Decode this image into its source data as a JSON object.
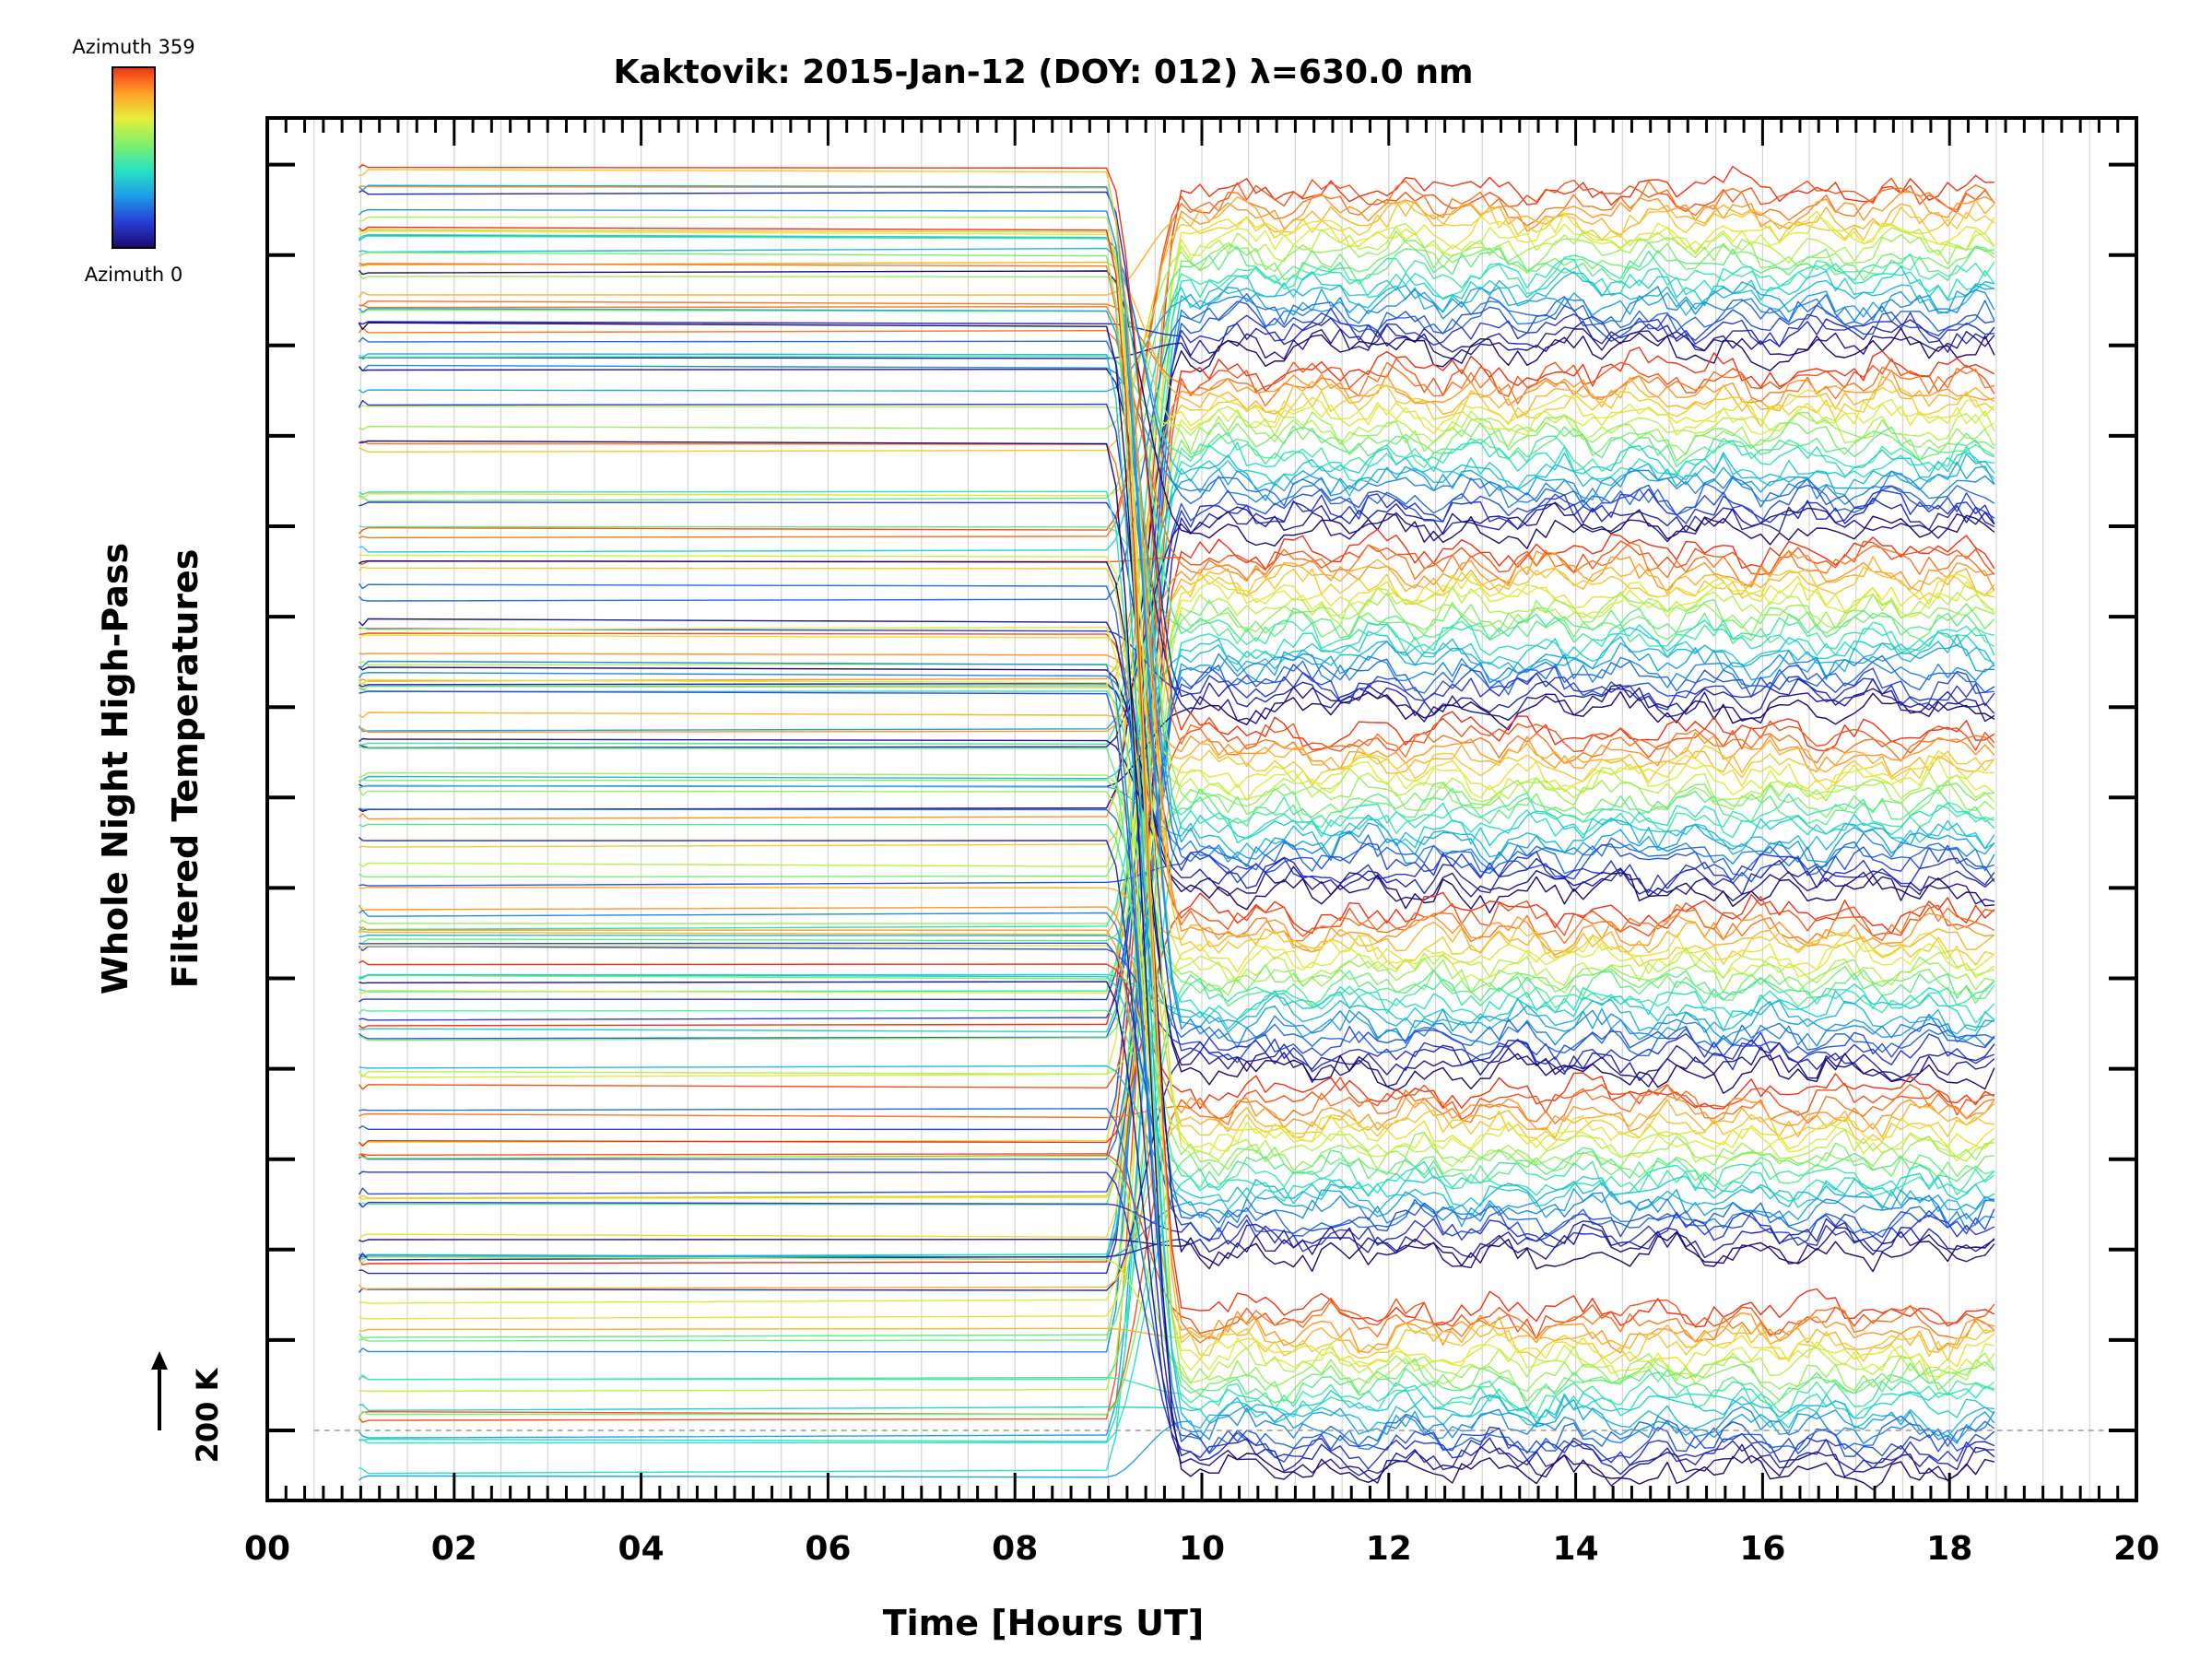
{
  "chart_data": {
    "type": "line",
    "title": "Kaktovik: 2015-Jan-12 (DOY: 012) λ=630.0 nm",
    "xlabel": "Time [Hours UT]",
    "ylabel_lines": [
      "Whole Night High-Pass",
      "Filtered Temperatures"
    ],
    "xlim": [
      0,
      20
    ],
    "x_ticks": [
      "00",
      "02",
      "04",
      "06",
      "08",
      "10",
      "12",
      "14",
      "16",
      "18",
      "20"
    ],
    "scale_bar_label": "200 K",
    "grid": true,
    "legend": {
      "placement": "top-left",
      "colormap": "rainbow",
      "top_label": "Azimuth 359",
      "bottom_label": "Azimuth 0"
    },
    "colormap_stops": [
      "#1a0a6e",
      "#2a3cd6",
      "#1e9be8",
      "#27e2c4",
      "#7ef06a",
      "#e6ee3a",
      "#ffa028",
      "#f03214"
    ],
    "sample_times": {
      "pre_gap": [
        0.98,
        1.02,
        1.08
      ],
      "post_gap_start": 8.98,
      "post_gap_end": 18.5,
      "post_gap_step": 0.1
    },
    "notes_visible_structure": {
      "data_gap_hours": [
        1.08,
        8.98
      ],
      "zero_reference_line_hours": [
        0.5,
        20
      ]
    }
  }
}
